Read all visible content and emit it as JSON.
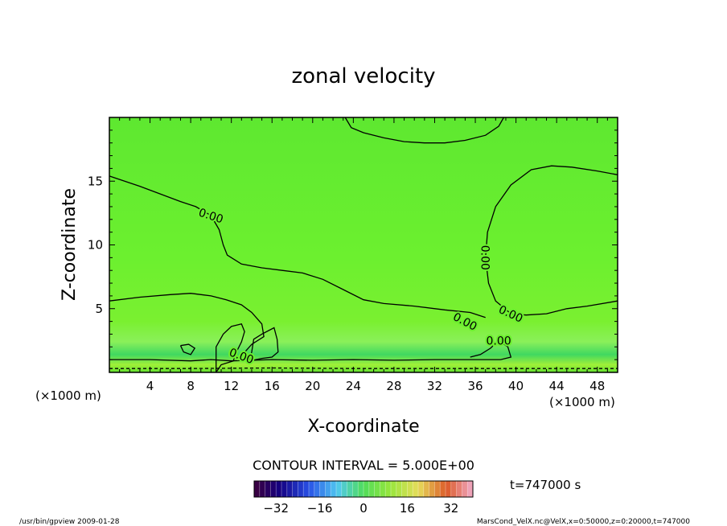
{
  "chart_data": {
    "type": "heatmap",
    "title": "zonal velocity",
    "xlabel": "X-coordinate",
    "ylabel": "Z-coordinate",
    "x_unit": "(×1000 m)",
    "z_unit": "(×1000 m)",
    "xlim": [
      0,
      50
    ],
    "ylim": [
      0,
      20
    ],
    "x_ticks": [
      4,
      8,
      12,
      16,
      20,
      24,
      28,
      32,
      36,
      40,
      44,
      48
    ],
    "y_ticks": [
      5,
      10,
      15
    ],
    "grid": false,
    "field_value_typical": 0,
    "field_colors": {
      "low_level": "#3fcf50",
      "interior": "#6cf02f",
      "surface": "#a8f030"
    },
    "contour_interval_text": "CONTOUR INTERVAL = 5.000E+00",
    "contour_labels": [
      "0.00",
      "0.00",
      "0.00",
      "0.00",
      "0.00",
      "0.00"
    ],
    "contours": [
      [
        [
          0,
          15.4
        ],
        [
          3,
          14.6
        ],
        [
          5,
          14.0
        ],
        [
          7,
          13.4
        ],
        [
          8.5,
          13.0
        ],
        [
          10,
          12.3
        ],
        [
          10.8,
          11.2
        ],
        [
          11.2,
          10.0
        ],
        [
          11.6,
          9.2
        ],
        [
          13,
          8.5
        ],
        [
          15,
          8.2
        ],
        [
          17,
          8.0
        ],
        [
          19,
          7.8
        ],
        [
          21,
          7.3
        ],
        [
          23,
          6.5
        ],
        [
          25,
          5.7
        ],
        [
          27,
          5.4
        ],
        [
          30,
          5.2
        ],
        [
          33,
          4.9
        ],
        [
          35.5,
          4.7
        ],
        [
          37,
          4.3
        ]
      ],
      [
        [
          0,
          5.6
        ],
        [
          3,
          5.9
        ],
        [
          6,
          6.1
        ],
        [
          8,
          6.2
        ],
        [
          10,
          6.0
        ],
        [
          11.5,
          5.7
        ],
        [
          13,
          5.3
        ],
        [
          14,
          4.7
        ],
        [
          15,
          3.8
        ],
        [
          15.2,
          2.8
        ],
        [
          14.0,
          2.2
        ],
        [
          13.0,
          1.3
        ],
        [
          12.8,
          0.9
        ]
      ],
      [
        [
          39.5,
          4.6
        ],
        [
          38,
          5.6
        ],
        [
          37.3,
          7.0
        ],
        [
          37.0,
          9.0
        ],
        [
          37.2,
          11.0
        ],
        [
          38,
          13.0
        ],
        [
          39.5,
          14.7
        ],
        [
          41.5,
          15.9
        ],
        [
          43.5,
          16.2
        ],
        [
          45.5,
          16.1
        ],
        [
          48,
          15.8
        ],
        [
          50,
          15.5
        ]
      ],
      [
        [
          39.5,
          4.6
        ],
        [
          41,
          4.5
        ],
        [
          43,
          4.6
        ],
        [
          45,
          5.0
        ],
        [
          47,
          5.2
        ],
        [
          50,
          5.6
        ]
      ],
      [
        [
          23.2,
          20.0
        ],
        [
          23.8,
          19.2
        ],
        [
          25,
          18.8
        ],
        [
          27,
          18.4
        ],
        [
          29,
          18.1
        ],
        [
          31,
          18.0
        ],
        [
          33,
          18.0
        ],
        [
          35,
          18.2
        ],
        [
          37,
          18.6
        ],
        [
          38.3,
          19.3
        ],
        [
          38.8,
          20.0
        ]
      ],
      [
        [
          7.0,
          2.1
        ],
        [
          7.8,
          2.2
        ],
        [
          8.4,
          1.9
        ],
        [
          8.0,
          1.4
        ],
        [
          7.3,
          1.6
        ],
        [
          7.0,
          2.1
        ]
      ],
      [
        [
          10.5,
          0.0
        ],
        [
          10.5,
          2.0
        ],
        [
          11.2,
          3.0
        ],
        [
          12.0,
          3.6
        ],
        [
          13.0,
          3.8
        ],
        [
          13.3,
          3.2
        ],
        [
          13.0,
          2.4
        ],
        [
          12.5,
          1.6
        ],
        [
          12.2,
          0.9
        ],
        [
          11.0,
          0.6
        ],
        [
          10.5,
          0.0
        ]
      ],
      [
        [
          13.8,
          0.9
        ],
        [
          14.0,
          1.6
        ],
        [
          14.2,
          2.6
        ],
        [
          15.0,
          3.0
        ],
        [
          16.2,
          3.5
        ],
        [
          16.5,
          2.6
        ],
        [
          16.6,
          1.6
        ],
        [
          16.0,
          1.2
        ],
        [
          15.0,
          1.1
        ],
        [
          13.8,
          0.9
        ]
      ],
      [
        [
          0,
          1.0
        ],
        [
          4,
          1.0
        ],
        [
          8,
          0.9
        ],
        [
          10,
          1.0
        ],
        [
          12,
          0.9
        ],
        [
          16,
          1.0
        ],
        [
          20,
          0.95
        ],
        [
          24,
          1.0
        ],
        [
          28,
          0.95
        ],
        [
          32,
          1.0
        ],
        [
          36,
          1.0
        ],
        [
          38.5,
          1.0
        ],
        [
          39.5,
          1.2
        ],
        [
          39.2,
          2.0
        ],
        [
          38.3,
          2.5
        ],
        [
          37.5,
          1.9
        ],
        [
          36.5,
          1.4
        ],
        [
          35.5,
          1.2
        ]
      ],
      [
        [
          0,
          0.3
        ],
        [
          8,
          0.3
        ],
        [
          16,
          0.35
        ],
        [
          24,
          0.3
        ],
        [
          32,
          0.3
        ],
        [
          40,
          0.3
        ],
        [
          50,
          0.3
        ]
      ]
    ],
    "colorbar": {
      "ticks": [
        -32,
        -16,
        0,
        16,
        32
      ],
      "range": [
        -40,
        40
      ],
      "levels": 40
    }
  },
  "info": {
    "time": "t=747000 s",
    "footer_left": "/usr/bin/gpview   2009-01-28",
    "footer_right": "MarsCond_VelX.nc@VelX,x=0:50000,z=0:20000,t=747000"
  }
}
